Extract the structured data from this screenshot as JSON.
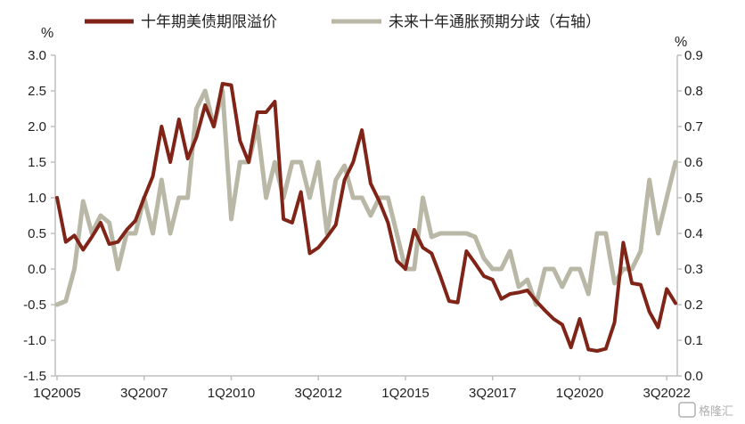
{
  "legend": {
    "series1_label": "十年期美债期限溢价",
    "series2_label": "未来十年通胀预期分歧（右轴）"
  },
  "axes": {
    "left_unit": "%",
    "right_unit": "%"
  },
  "watermark": {
    "text": "格隆汇"
  },
  "colors": {
    "series1": "#7f2417",
    "series2": "#b9b8a7",
    "axis": "#bfbfbf"
  },
  "chart_data": {
    "type": "line",
    "title": "",
    "x": [
      "1Q2005",
      "2Q2005",
      "3Q2005",
      "4Q2005",
      "1Q2006",
      "2Q2006",
      "3Q2006",
      "4Q2006",
      "1Q2007",
      "2Q2007",
      "3Q2007",
      "4Q2007",
      "1Q2008",
      "2Q2008",
      "3Q2008",
      "4Q2008",
      "1Q2009",
      "2Q2009",
      "3Q2009",
      "4Q2009",
      "1Q2010",
      "2Q2010",
      "3Q2010",
      "4Q2010",
      "1Q2011",
      "2Q2011",
      "3Q2011",
      "4Q2011",
      "1Q2012",
      "2Q2012",
      "3Q2012",
      "4Q2012",
      "1Q2013",
      "2Q2013",
      "3Q2013",
      "4Q2013",
      "1Q2014",
      "2Q2014",
      "3Q2014",
      "4Q2014",
      "1Q2015",
      "2Q2015",
      "3Q2015",
      "4Q2015",
      "1Q2016",
      "2Q2016",
      "3Q2016",
      "4Q2016",
      "1Q2017",
      "2Q2017",
      "3Q2017",
      "4Q2017",
      "1Q2018",
      "2Q2018",
      "3Q2018",
      "4Q2018",
      "1Q2019",
      "2Q2019",
      "3Q2019",
      "4Q2019",
      "1Q2020",
      "2Q2020",
      "3Q2020",
      "4Q2020",
      "1Q2021",
      "2Q2021",
      "3Q2021",
      "4Q2021",
      "1Q2022",
      "2Q2022",
      "3Q2022",
      "4Q2022"
    ],
    "x_tick_labels": [
      "1Q2005",
      "3Q2007",
      "1Q2010",
      "3Q2012",
      "1Q2015",
      "3Q2017",
      "1Q2020",
      "3Q2022"
    ],
    "y_left": {
      "lim": [
        -1.5,
        3.0
      ],
      "ticks": [
        "-1.5",
        "-1.0",
        "-0.5",
        "0.0",
        "0.5",
        "1.0",
        "1.5",
        "2.0",
        "2.5",
        "3.0"
      ]
    },
    "y_right": {
      "lim": [
        0.0,
        0.9
      ],
      "ticks": [
        "0.0",
        "0.1",
        "0.2",
        "0.3",
        "0.4",
        "0.5",
        "0.6",
        "0.7",
        "0.8",
        "0.9"
      ]
    },
    "legend_position": "top",
    "series": [
      {
        "name": "十年期美债期限溢价",
        "axis": "left",
        "values": [
          1.0,
          0.38,
          0.47,
          0.27,
          0.45,
          0.65,
          0.35,
          0.38,
          0.55,
          0.68,
          1.0,
          1.3,
          2.0,
          1.5,
          2.1,
          1.55,
          1.85,
          2.3,
          2.0,
          2.6,
          2.58,
          1.8,
          1.5,
          2.2,
          2.2,
          2.35,
          0.7,
          0.65,
          1.08,
          0.22,
          0.3,
          0.45,
          0.62,
          1.25,
          1.5,
          1.95,
          1.2,
          0.95,
          0.65,
          0.12,
          0.0,
          0.55,
          0.3,
          0.22,
          -0.1,
          -0.45,
          -0.47,
          0.25,
          0.08,
          -0.1,
          -0.15,
          -0.42,
          -0.35,
          -0.33,
          -0.3,
          -0.45,
          -0.58,
          -0.7,
          -0.78,
          -1.1,
          -0.7,
          -1.13,
          -1.15,
          -1.12,
          -0.75,
          0.37,
          -0.2,
          -0.22,
          -0.6,
          -0.82,
          -0.28,
          -0.48
        ]
      },
      {
        "name": "未来十年通胀预期分歧（右轴）",
        "axis": "right",
        "values": [
          0.2,
          0.21,
          0.3,
          0.49,
          0.4,
          0.45,
          0.43,
          0.3,
          0.4,
          0.4,
          0.5,
          0.4,
          0.55,
          0.4,
          0.5,
          0.5,
          0.75,
          0.8,
          0.7,
          0.8,
          0.44,
          0.6,
          0.6,
          0.7,
          0.5,
          0.6,
          0.5,
          0.6,
          0.6,
          0.5,
          0.6,
          0.4,
          0.55,
          0.59,
          0.5,
          0.5,
          0.45,
          0.5,
          0.5,
          0.4,
          0.3,
          0.3,
          0.5,
          0.39,
          0.4,
          0.4,
          0.4,
          0.4,
          0.39,
          0.33,
          0.3,
          0.3,
          0.35,
          0.25,
          0.27,
          0.2,
          0.3,
          0.3,
          0.25,
          0.3,
          0.3,
          0.23,
          0.4,
          0.4,
          0.26,
          0.3,
          0.3,
          0.35,
          0.55,
          0.4,
          0.5,
          0.6
        ]
      }
    ]
  }
}
